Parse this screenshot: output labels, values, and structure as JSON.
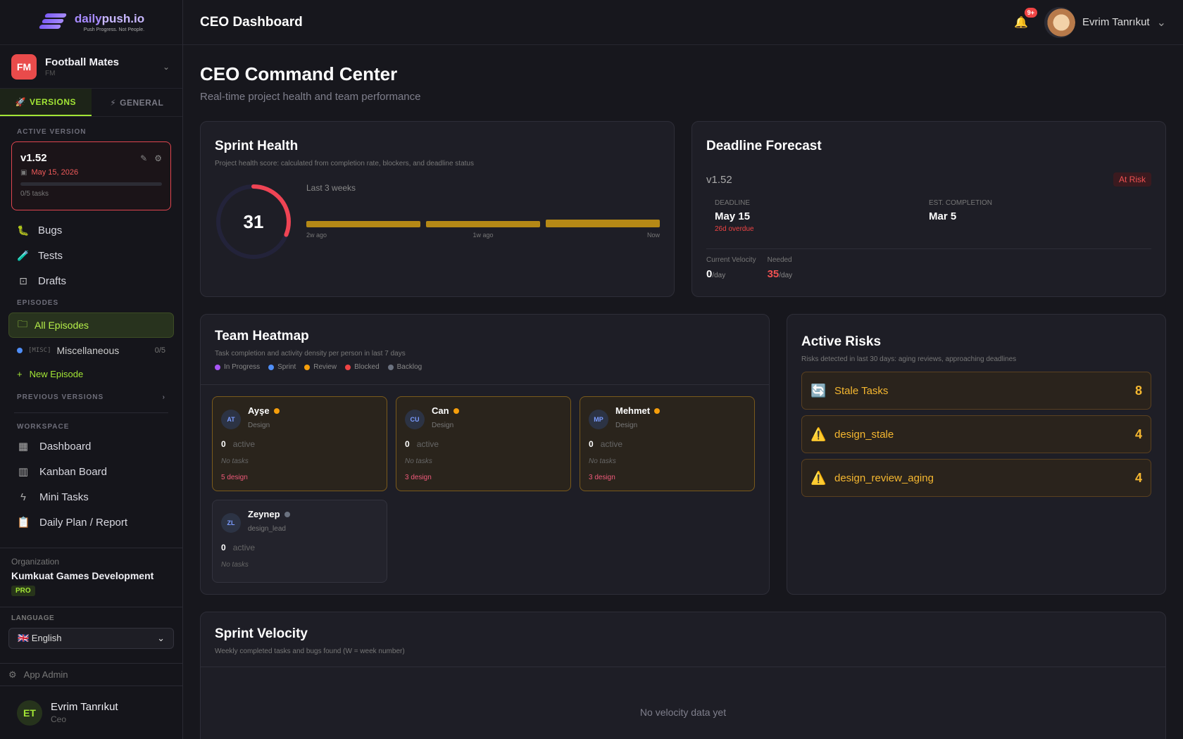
{
  "brand": {
    "name_a": "daily",
    "name_b": "push.io",
    "tagline": "Push Progress. Not People."
  },
  "project": {
    "initials": "FM",
    "name": "Football Mates",
    "sub": "FM"
  },
  "sidebar_tabs": {
    "versions": "VERSIONS",
    "general": "GENERAL"
  },
  "active_version": {
    "label": "ACTIVE VERSION",
    "version": "v1.52",
    "date": "May 15, 2026",
    "tasks": "0/5 tasks",
    "progress": 0
  },
  "nav": {
    "bugs": "Bugs",
    "tests": "Tests",
    "drafts": "Drafts"
  },
  "episodes": {
    "label": "EPISODES",
    "all": "All Episodes",
    "misc_tag": "[MISC]",
    "misc": "Miscellaneous",
    "misc_count": "0/5",
    "new": "New Episode"
  },
  "previous_versions": "PREVIOUS VERSIONS",
  "workspace": {
    "label": "WORKSPACE",
    "dashboard": "Dashboard",
    "kanban": "Kanban Board",
    "mini": "Mini Tasks",
    "daily": "Daily Plan / Report"
  },
  "org": {
    "label": "Organization",
    "name": "Kumkuat Games Development",
    "plan": "PRO"
  },
  "language": {
    "label": "LANGUAGE",
    "value": "🇬🇧 English"
  },
  "app_admin": "App Admin",
  "footer_user": {
    "initials": "ET",
    "name": "Evrim Tanrıkut",
    "role": "Ceo"
  },
  "topbar": {
    "title": "CEO Dashboard",
    "notif": "9+",
    "user": "Evrim Tanrıkut"
  },
  "page": {
    "title": "CEO Command Center",
    "subtitle": "Real-time project health and team performance"
  },
  "sprint_health": {
    "title": "Sprint Health",
    "subtitle": "Project health score: calculated from completion rate, blockers, and deadline status",
    "score": "31",
    "score_value": 31,
    "weeks_label": "Last 3 weeks",
    "weeks": [
      "2w ago",
      "1w ago",
      "Now"
    ]
  },
  "deadline": {
    "title": "Deadline Forecast",
    "version": "v1.52",
    "status": "At Risk",
    "deadline_label": "DEADLINE",
    "deadline": "May 15",
    "overdue": "26d overdue",
    "est_label": "EST. COMPLETION",
    "est": "Mar 5",
    "cur_label": "Current Velocity",
    "cur": "0",
    "need_label": "Needed",
    "need": "35",
    "unit": "/day"
  },
  "heatmap": {
    "title": "Team Heatmap",
    "subtitle": "Task completion and activity density per person in last 7 days",
    "legend": [
      {
        "label": "In Progress",
        "color": "#a855f7"
      },
      {
        "label": "Sprint",
        "color": "#4f8ef7"
      },
      {
        "label": "Review",
        "color": "#f59e0b"
      },
      {
        "label": "Blocked",
        "color": "#ef4444"
      },
      {
        "label": "Backlog",
        "color": "#6b7280"
      }
    ],
    "people": [
      {
        "initials": "AT",
        "name": "Ayşe",
        "role": "Design",
        "active": "0",
        "active_label": "active",
        "tasks": "No tasks",
        "design": "5 design"
      },
      {
        "initials": "CU",
        "name": "Can",
        "role": "Design",
        "active": "0",
        "active_label": "active",
        "tasks": "No tasks",
        "design": "3 design"
      },
      {
        "initials": "MP",
        "name": "Mehmet",
        "role": "Design",
        "active": "0",
        "active_label": "active",
        "tasks": "No tasks",
        "design": "3 design"
      },
      {
        "initials": "ZL",
        "name": "Zeynep",
        "role": "design_lead",
        "active": "0",
        "active_label": "active",
        "tasks": "No tasks"
      }
    ]
  },
  "risks": {
    "title": "Active Risks",
    "subtitle": "Risks detected in last 30 days: aging reviews, approaching deadlines",
    "items": [
      {
        "name": "Stale Tasks",
        "count": "8",
        "icon": "🔄"
      },
      {
        "name": "design_stale",
        "count": "4",
        "icon": "⚠️"
      },
      {
        "name": "design_review_aging",
        "count": "4",
        "icon": "⚠️"
      }
    ]
  },
  "velocity": {
    "title": "Sprint Velocity",
    "subtitle": "Weekly completed tasks and bugs found (W = week number)",
    "empty": "No velocity data yet"
  }
}
